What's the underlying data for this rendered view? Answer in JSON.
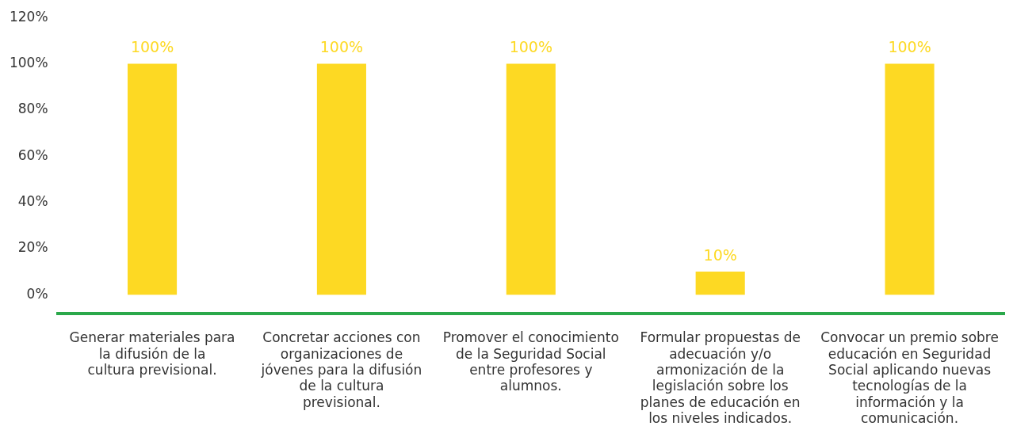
{
  "chart_data": {
    "type": "bar",
    "categories": [
      "Generar materiales para la difusión de la cultura previsional.",
      "Concretar acciones con organizaciones de jóvenes para la difusión de la cultura previsional.",
      "Promover el conocimiento de la Seguridad Social entre profesores y alumnos.",
      "Formular propuestas de adecuación y/o armonización de la legislación sobre los planes de educación en los niveles indicados.",
      "Convocar un premio sobre educación en Seguridad Social aplicando nuevas tecnologías de la información y la comunicación."
    ],
    "values": [
      100,
      100,
      100,
      10,
      100
    ],
    "color": "#fdd923",
    "ylim": [
      -8,
      120
    ],
    "yticks": [
      {
        "value": 0,
        "label": "0%"
      },
      {
        "value": 20,
        "label": "20%"
      },
      {
        "value": 40,
        "label": "40%"
      },
      {
        "value": 60,
        "label": "60%"
      },
      {
        "value": 80,
        "label": "80%"
      },
      {
        "value": 100,
        "label": "100%"
      },
      {
        "value": 120,
        "label": "120%"
      }
    ],
    "value_labels": [
      "100%",
      "100%",
      "100%",
      "10%",
      "100%"
    ],
    "grid": false,
    "legend": false
  }
}
